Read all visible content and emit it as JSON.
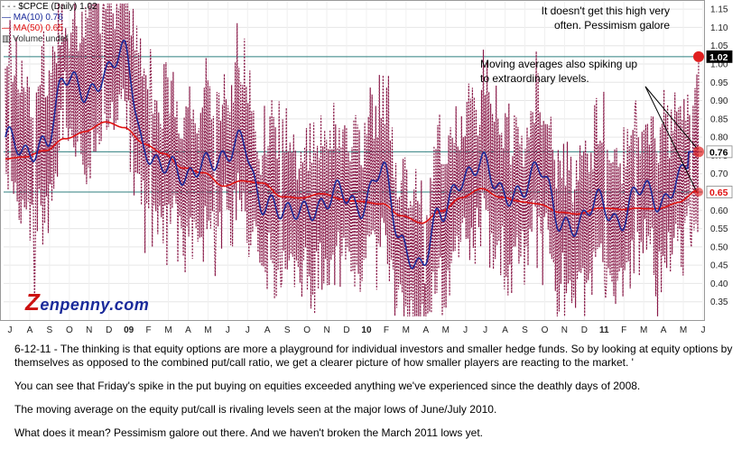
{
  "legend": {
    "series_main": "$CPCE (Daily) 1.02",
    "series_ma10": "MA(10) 0.76",
    "series_ma50": "MA(50) 0.65",
    "series_volume": "Volume undef"
  },
  "annotations": {
    "top_note": "It doesn't get this high very often. Pessimism galore",
    "ma_note": "Moving averages also spiking up to extraordinary levels."
  },
  "logo": {
    "text": "enpenny.com",
    "initial": "Z"
  },
  "caption": {
    "p1": "6-12-11 - The thinking is that equity options are more a playground for individual investors and smaller hedge funds. So by looking at equity options by themselves as opposed to the combined put/call ratio, we get a clearer picture of how smaller players are reacting to the market. '",
    "p2": "You can see that Friday's spike in the put buying on equities exceeded anything we've experienced since the deathly days of 2008.",
    "p3": "The moving average on the equity put/call is rivaling levels seen at the major lows of June/July 2010.",
    "p4": "What does it mean? Pessimism galore out there. And we haven't broken the March 2011 lows yet."
  },
  "colors": {
    "main": "#8a1c4a",
    "ma10": "#1a2a9a",
    "ma50": "#e01010",
    "hline": "#2f7f7f",
    "highlight": "#e02020"
  },
  "chart_data": {
    "type": "line",
    "x_tick_labels": [
      "J",
      "A",
      "S",
      "O",
      "N",
      "D",
      "09",
      "F",
      "M",
      "A",
      "M",
      "J",
      "J",
      "A",
      "S",
      "O",
      "N",
      "D",
      "10",
      "F",
      "M",
      "A",
      "M",
      "J",
      "J",
      "A",
      "S",
      "O",
      "N",
      "D",
      "11",
      "F",
      "M",
      "A",
      "M",
      "J"
    ],
    "y_ticks": [
      0.35,
      0.4,
      0.45,
      0.5,
      0.55,
      0.6,
      0.65,
      0.7,
      0.75,
      0.8,
      0.85,
      0.9,
      0.95,
      1.0,
      1.05,
      1.1,
      1.15
    ],
    "ylim": [
      0.3,
      1.17
    ],
    "reference_lines": [
      1.02,
      0.76,
      0.65
    ],
    "last_values": {
      "cpce": 1.02,
      "ma10": 0.76,
      "ma50": 0.65
    },
    "ma10_anchors": [
      0.8,
      0.74,
      0.8,
      0.95,
      0.92,
      0.98,
      1.02,
      0.78,
      0.72,
      0.68,
      0.75,
      0.72,
      0.8,
      0.62,
      0.58,
      0.62,
      0.6,
      0.65,
      0.62,
      0.7,
      0.52,
      0.45,
      0.58,
      0.7,
      0.72,
      0.65,
      0.66,
      0.7,
      0.58,
      0.56,
      0.62,
      0.58,
      0.65,
      0.62,
      0.7,
      0.76
    ],
    "ma50_anchors": [
      0.74,
      0.74,
      0.76,
      0.8,
      0.82,
      0.84,
      0.82,
      0.78,
      0.76,
      0.72,
      0.7,
      0.66,
      0.68,
      0.68,
      0.64,
      0.63,
      0.64,
      0.63,
      0.63,
      0.62,
      0.58,
      0.56,
      0.6,
      0.64,
      0.66,
      0.63,
      0.62,
      0.62,
      0.6,
      0.59,
      0.6,
      0.6,
      0.61,
      0.61,
      0.62,
      0.65
    ],
    "cpce_extremes": [
      [
        5,
        1.12
      ],
      [
        18,
        1.01
      ],
      [
        33,
        0.35
      ],
      [
        41,
        1.05
      ],
      [
        66,
        0.98
      ],
      [
        73,
        0.94
      ],
      [
        109,
        1.16
      ],
      [
        162,
        1.04
      ],
      [
        235,
        0.42
      ],
      [
        308,
        0.39
      ],
      [
        392,
        0.86
      ],
      [
        470,
        0.4
      ],
      [
        477,
        0.32
      ],
      [
        513,
        0.8
      ],
      [
        630,
        0.4
      ],
      [
        672,
        0.36
      ],
      [
        706,
        0.9
      ],
      [
        768,
        0.5
      ],
      [
        776,
        1.02
      ]
    ]
  }
}
